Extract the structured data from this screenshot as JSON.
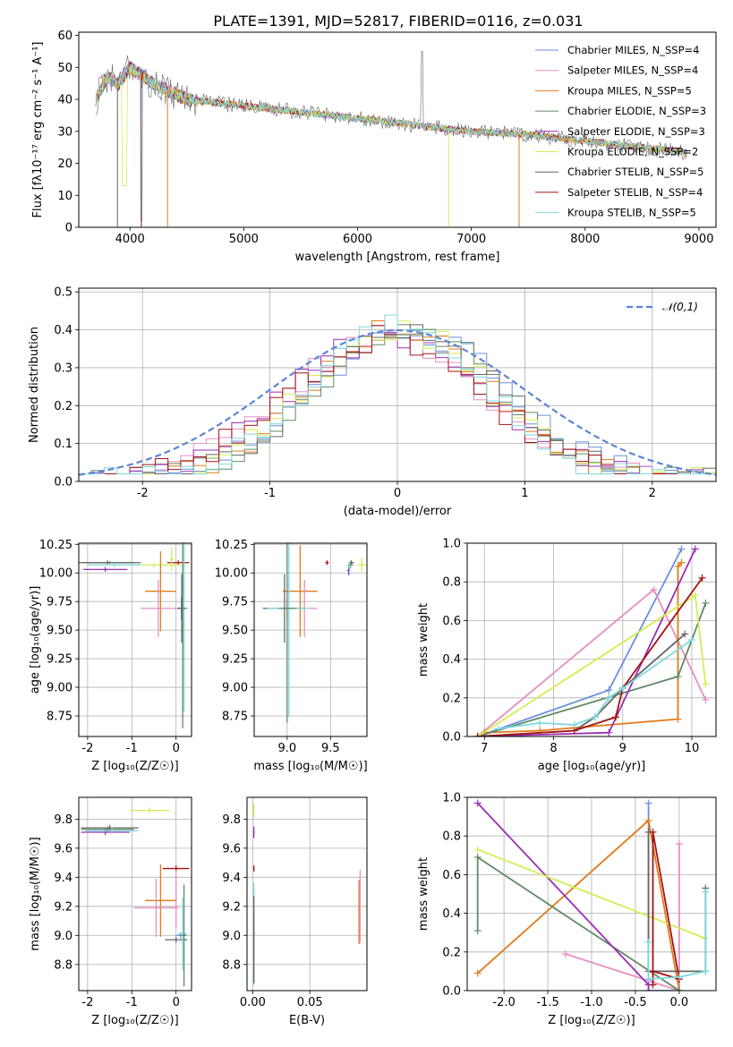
{
  "figure": {
    "title": "PLATE=1391, MJD=52817, FIBERID=0116, z=0.031"
  },
  "colors": {
    "palette": [
      "#6a8fdc",
      "#e68fc0",
      "#e07b1a",
      "#5f8a64",
      "#9a2fb5",
      "#d3ee52",
      "#666666",
      "#a31313",
      "#7fd9df"
    ],
    "gaussian": "#5b85d6",
    "grid": "#b0b0b0"
  },
  "chart_data": [
    {
      "id": "spectrum",
      "type": "line",
      "xlabel": "wavelength [Angstrom, rest frame]",
      "ylabel": "Flux [fλ10⁻¹⁷ erg cm⁻² s⁻¹ A⁻¹]",
      "xlim": [
        3550,
        9150
      ],
      "ylim": [
        0,
        61
      ],
      "xticks": [
        4000,
        5000,
        6000,
        7000,
        8000,
        9000
      ],
      "yticks": [
        0,
        10,
        20,
        30,
        40,
        50,
        60
      ],
      "grid": false,
      "legend_position": "top-right",
      "legend": [
        "Chabrier MILES, N_SSP=4",
        "Salpeter MILES, N_SSP=4",
        "Kroupa MILES, N_SSP=5",
        "Chabrier ELODIE, N_SSP=3",
        "Salpeter ELODIE, N_SSP=3",
        "Kroupa ELODIE, N_SSP=2",
        "Chabrier STELIB, N_SSP=5",
        "Salpeter STELIB, N_SSP=4",
        "Kroupa STELIB, N_SSP=5"
      ],
      "continuum": {
        "x": [
          3700,
          3800,
          3900,
          4000,
          4200,
          4500,
          5000,
          5500,
          6000,
          6500,
          7000,
          7500,
          8000,
          8500,
          9000
        ],
        "y": [
          40,
          47,
          45,
          50,
          45,
          40,
          38,
          36,
          34,
          32,
          30,
          29,
          27,
          25,
          23
        ]
      }
    },
    {
      "id": "residuals",
      "type": "histogram",
      "xlabel": "(data-model)/error",
      "ylabel": "Normed distribution",
      "xlim": [
        -2.5,
        2.5
      ],
      "ylim": [
        0,
        0.51
      ],
      "xticks": [
        -2,
        -1,
        0,
        1,
        2
      ],
      "yticks": [
        0.0,
        0.1,
        0.2,
        0.3,
        0.4,
        0.5
      ],
      "grid": true,
      "legend_position": "top-right",
      "reference_label": "𝒩(0,1)",
      "bin_width": 0.1
    },
    {
      "id": "age-vs-Z",
      "type": "scatter",
      "xlabel": "Z [log₁₀(Z/Z☉)]",
      "ylabel": "age  [log₁₀(age/yr)]",
      "xlim": [
        -2.2,
        0.35
      ],
      "ylim": [
        8.57,
        10.26
      ],
      "xticks": [
        -2,
        -1,
        0
      ],
      "yticks": [
        8.75,
        9.0,
        9.25,
        9.5,
        9.75,
        10.0,
        10.25
      ],
      "grid": true,
      "points": [
        {
          "series": 7,
          "x": 0.05,
          "y": 10.09,
          "xerr": 0.25,
          "yerr": 0.02
        },
        {
          "series": 5,
          "x": -0.5,
          "y": 10.07,
          "xerr": 0.6,
          "yerr": 0.02
        },
        {
          "series": 5,
          "x": -0.1,
          "y": 10.12,
          "xerr": 0.05,
          "yerr": 0.1
        },
        {
          "series": 3,
          "x": -1.55,
          "y": 10.09,
          "xerr": 0.6,
          "yerr": 0.02
        },
        {
          "series": 6,
          "x": -1.5,
          "y": 10.09,
          "xerr": 0.7,
          "yerr": 0.01
        },
        {
          "series": 4,
          "x": -1.6,
          "y": 10.03,
          "xerr": 0.5,
          "yerr": 0.02
        },
        {
          "series": 8,
          "x": -1.4,
          "y": 10.07,
          "xerr": 0.6,
          "yerr": 0.02
        },
        {
          "series": 2,
          "x": -0.35,
          "y": 9.84,
          "xerr": 0.35,
          "yerr": 0.35
        },
        {
          "series": 1,
          "x": -0.4,
          "y": 9.69,
          "xerr": 0.4,
          "yerr": 0.25
        },
        {
          "series": 0,
          "x": 0.12,
          "y": 9.69,
          "xerr": 0.1,
          "yerr": 0.1
        },
        {
          "series": 3,
          "x": 0.15,
          "y": 9.69,
          "xerr": 0.12,
          "yerr": 1.05
        },
        {
          "series": 8,
          "x": 0.18,
          "y": 9.69,
          "xerr": 0.1,
          "yerr": 0.9
        },
        {
          "series": 6,
          "x": 0.13,
          "y": 9.69,
          "xerr": 0.1,
          "yerr": 0.3
        }
      ]
    },
    {
      "id": "age-vs-mass",
      "type": "scatter",
      "xlabel": "mass [log₁₀(M/M☉)]",
      "ylabel": "",
      "xlim": [
        8.62,
        9.92
      ],
      "ylim": [
        8.57,
        10.26
      ],
      "xticks": [
        9.0,
        9.5
      ],
      "yticks": [
        8.75,
        9.0,
        9.25,
        9.5,
        9.75,
        10.0,
        10.25
      ],
      "grid": true,
      "points": [
        {
          "series": 7,
          "x": 9.46,
          "y": 10.09,
          "xerr": 0.02,
          "yerr": 0.02
        },
        {
          "series": 5,
          "x": 9.86,
          "y": 10.07,
          "xerr": 0.05,
          "yerr": 0.06
        },
        {
          "series": 6,
          "x": 9.74,
          "y": 10.09,
          "xerr": 0.03,
          "yerr": 0.02
        },
        {
          "series": 3,
          "x": 9.73,
          "y": 10.07,
          "xerr": 0.03,
          "yerr": 0.03
        },
        {
          "series": 4,
          "x": 9.71,
          "y": 10.02,
          "xerr": 0.02,
          "yerr": 0.04
        },
        {
          "series": 8,
          "x": 9.72,
          "y": 10.05,
          "xerr": 0.02,
          "yerr": 0.04
        },
        {
          "series": 2,
          "x": 9.15,
          "y": 9.84,
          "xerr": 0.2,
          "yerr": 0.4
        },
        {
          "series": 1,
          "x": 9.2,
          "y": 9.69,
          "xerr": 0.15,
          "yerr": 0.25
        },
        {
          "series": 6,
          "x": 8.97,
          "y": 9.69,
          "xerr": 0.25,
          "yerr": 0.3
        },
        {
          "series": 0,
          "x": 9.0,
          "y": 9.69,
          "xerr": 0.2,
          "yerr": 0.1
        },
        {
          "series": 8,
          "x": 9.02,
          "y": 9.69,
          "xerr": 0.25,
          "yerr": 0.95
        },
        {
          "series": 3,
          "x": 9.0,
          "y": 9.69,
          "xerr": 0.1,
          "yerr": 1.0
        }
      ]
    },
    {
      "id": "weight-vs-age",
      "type": "line",
      "xlabel": "age  [log₁₀(age/yr)]",
      "ylabel": "mass weight",
      "xlim": [
        6.75,
        10.35
      ],
      "ylim": [
        0,
        1.0
      ],
      "xticks": [
        7,
        8,
        9,
        10
      ],
      "yticks": [
        0.0,
        0.2,
        0.4,
        0.6,
        0.8,
        1.0
      ],
      "grid": true,
      "series": [
        {
          "x": [
            6.9,
            8.8,
            9.85
          ],
          "y": [
            0.0,
            0.24,
            0.97
          ]
        },
        {
          "x": [
            6.9,
            9.45,
            10.2
          ],
          "y": [
            0.0,
            0.76,
            0.19
          ]
        },
        {
          "x": [
            7.0,
            7.8,
            9.8,
            9.8,
            9.85
          ],
          "y": [
            0.02,
            0.03,
            0.09,
            0.88,
            0.9
          ]
        },
        {
          "x": [
            6.9,
            9.8,
            10.2
          ],
          "y": [
            0.0,
            0.31,
            0.69
          ]
        },
        {
          "x": [
            6.9,
            8.8,
            10.05
          ],
          "y": [
            0.0,
            0.02,
            0.97
          ]
        },
        {
          "x": [
            6.9,
            10.05,
            10.2
          ],
          "y": [
            0.0,
            0.73,
            0.27
          ]
        },
        {
          "x": [
            6.9,
            8.3,
            8.6,
            9.0,
            9.9
          ],
          "y": [
            0.0,
            0.03,
            0.1,
            0.25,
            0.53
          ]
        },
        {
          "x": [
            6.9,
            8.3,
            8.9,
            9.0,
            10.15
          ],
          "y": [
            0.0,
            0.03,
            0.1,
            0.25,
            0.82
          ]
        },
        {
          "x": [
            7.2,
            7.8,
            8.3,
            8.6,
            8.8,
            9.0,
            10.0
          ],
          "y": [
            0.04,
            0.07,
            0.06,
            0.1,
            0.2,
            0.25,
            0.5
          ]
        }
      ]
    },
    {
      "id": "mass-vs-Z",
      "type": "scatter",
      "xlabel": "Z [log₁₀(Z/Z☉)]",
      "ylabel": "mass [log₁₀(M/M☉)]",
      "xlim": [
        -2.2,
        0.35
      ],
      "ylim": [
        8.62,
        9.95
      ],
      "xticks": [
        -2,
        -1,
        0
      ],
      "yticks": [
        8.8,
        9.0,
        9.2,
        9.4,
        9.6,
        9.8
      ],
      "grid": true,
      "points": [
        {
          "series": 5,
          "x": -0.6,
          "y": 9.86,
          "xerr": 0.45,
          "yerr": 0.02
        },
        {
          "series": 3,
          "x": -1.55,
          "y": 9.73,
          "xerr": 0.6,
          "yerr": 0.02
        },
        {
          "series": 6,
          "x": -1.5,
          "y": 9.74,
          "xerr": 0.65,
          "yerr": 0.02
        },
        {
          "series": 4,
          "x": -1.6,
          "y": 9.71,
          "xerr": 0.55,
          "yerr": 0.02
        },
        {
          "series": 8,
          "x": -1.45,
          "y": 9.72,
          "xerr": 0.6,
          "yerr": 0.02
        },
        {
          "series": 7,
          "x": 0.0,
          "y": 9.46,
          "xerr": 0.3,
          "yerr": 0.02
        },
        {
          "series": 2,
          "x": -0.35,
          "y": 9.24,
          "xerr": 0.35,
          "yerr": 0.25
        },
        {
          "series": 1,
          "x": -0.45,
          "y": 9.19,
          "xerr": 0.5,
          "yerr": 0.2
        },
        {
          "series": 0,
          "x": 0.1,
          "y": 9.0,
          "xerr": 0.1,
          "yerr": 0.02
        },
        {
          "series": 6,
          "x": 0.0,
          "y": 8.97,
          "xerr": 0.25,
          "yerr": 0.02
        },
        {
          "series": 8,
          "x": 0.15,
          "y": 9.01,
          "xerr": 0.1,
          "yerr": 0.25
        },
        {
          "series": 3,
          "x": 0.18,
          "y": 9.0,
          "xerr": 0.05,
          "yerr": 0.35
        },
        {
          "series": 1,
          "x": 0.0,
          "y": 9.25,
          "xerr": 0.02,
          "yerr": 0.2
        }
      ]
    },
    {
      "id": "mass-vs-ebv",
      "type": "scatter",
      "xlabel": "E(B-V)",
      "ylabel": "",
      "xlim": [
        -0.005,
        0.1
      ],
      "ylim": [
        8.62,
        9.95
      ],
      "xticks": [
        0.0,
        0.05
      ],
      "yticks": [
        8.8,
        9.0,
        9.2,
        9.4,
        9.6,
        9.8
      ],
      "grid": true,
      "points": [
        {
          "series": 5,
          "x": 0.001,
          "y": 9.86,
          "xerr": 0.001,
          "yerr": 0.05
        },
        {
          "series": 4,
          "x": 0.001,
          "y": 9.71,
          "xerr": 0.0005,
          "yerr": 0.04
        },
        {
          "series": 7,
          "x": 0.001,
          "y": 9.46,
          "xerr": 0.0005,
          "yerr": 0.02
        },
        {
          "series": 8,
          "x": 0.001,
          "y": 9.01,
          "xerr": 0.001,
          "yerr": 0.35
        },
        {
          "series": 6,
          "x": 0.001,
          "y": 8.97,
          "xerr": 0.0005,
          "yerr": 0.3
        },
        {
          "series": 2,
          "x": 0.093,
          "y": 9.16,
          "xerr": 0.0005,
          "yerr": 0.22
        },
        {
          "series": 1,
          "x": 0.094,
          "y": 9.2,
          "xerr": 0.0005,
          "yerr": 0.25
        }
      ]
    },
    {
      "id": "weight-vs-Z",
      "type": "line",
      "xlabel": "Z [log₁₀(Z/Z☉)]",
      "ylabel": "mass weight",
      "xlim": [
        -2.42,
        0.42
      ],
      "ylim": [
        0,
        1.0
      ],
      "xticks": [
        -2.0,
        -1.5,
        -1.0,
        -0.5,
        0.0
      ],
      "yticks": [
        0.0,
        0.2,
        0.4,
        0.6,
        0.8,
        1.0
      ],
      "grid": true,
      "series": [
        {
          "x": [
            -0.35,
            -0.35,
            0.0
          ],
          "y": [
            0.97,
            0.0,
            0.0
          ]
        },
        {
          "x": [
            -1.3,
            0.0,
            0.0
          ],
          "y": [
            0.19,
            0.0,
            0.76
          ]
        },
        {
          "x": [
            -2.3,
            -0.35,
            0.0
          ],
          "y": [
            0.09,
            0.88,
            0.0
          ]
        },
        {
          "x": [
            -2.3,
            -2.3,
            0.0
          ],
          "y": [
            0.31,
            0.69,
            0.0
          ]
        },
        {
          "x": [
            -2.3,
            -0.35,
            -0.35
          ],
          "y": [
            0.97,
            0.03,
            0.0
          ]
        },
        {
          "x": [
            -2.3,
            0.3
          ],
          "y": [
            0.73,
            0.27
          ]
        },
        {
          "x": [
            -0.35,
            -0.35,
            0.3,
            0.3
          ],
          "y": [
            0.82,
            0.1,
            0.1,
            0.53
          ]
        },
        {
          "x": [
            -0.3,
            -0.3,
            0.0,
            0.0,
            -0.3
          ],
          "y": [
            0.03,
            0.82,
            0.06,
            0.06,
            0.1
          ]
        },
        {
          "x": [
            -0.35,
            -0.35,
            0.0,
            0.3,
            0.3
          ],
          "y": [
            0.25,
            0.06,
            0.07,
            0.1,
            0.51
          ]
        }
      ]
    }
  ]
}
